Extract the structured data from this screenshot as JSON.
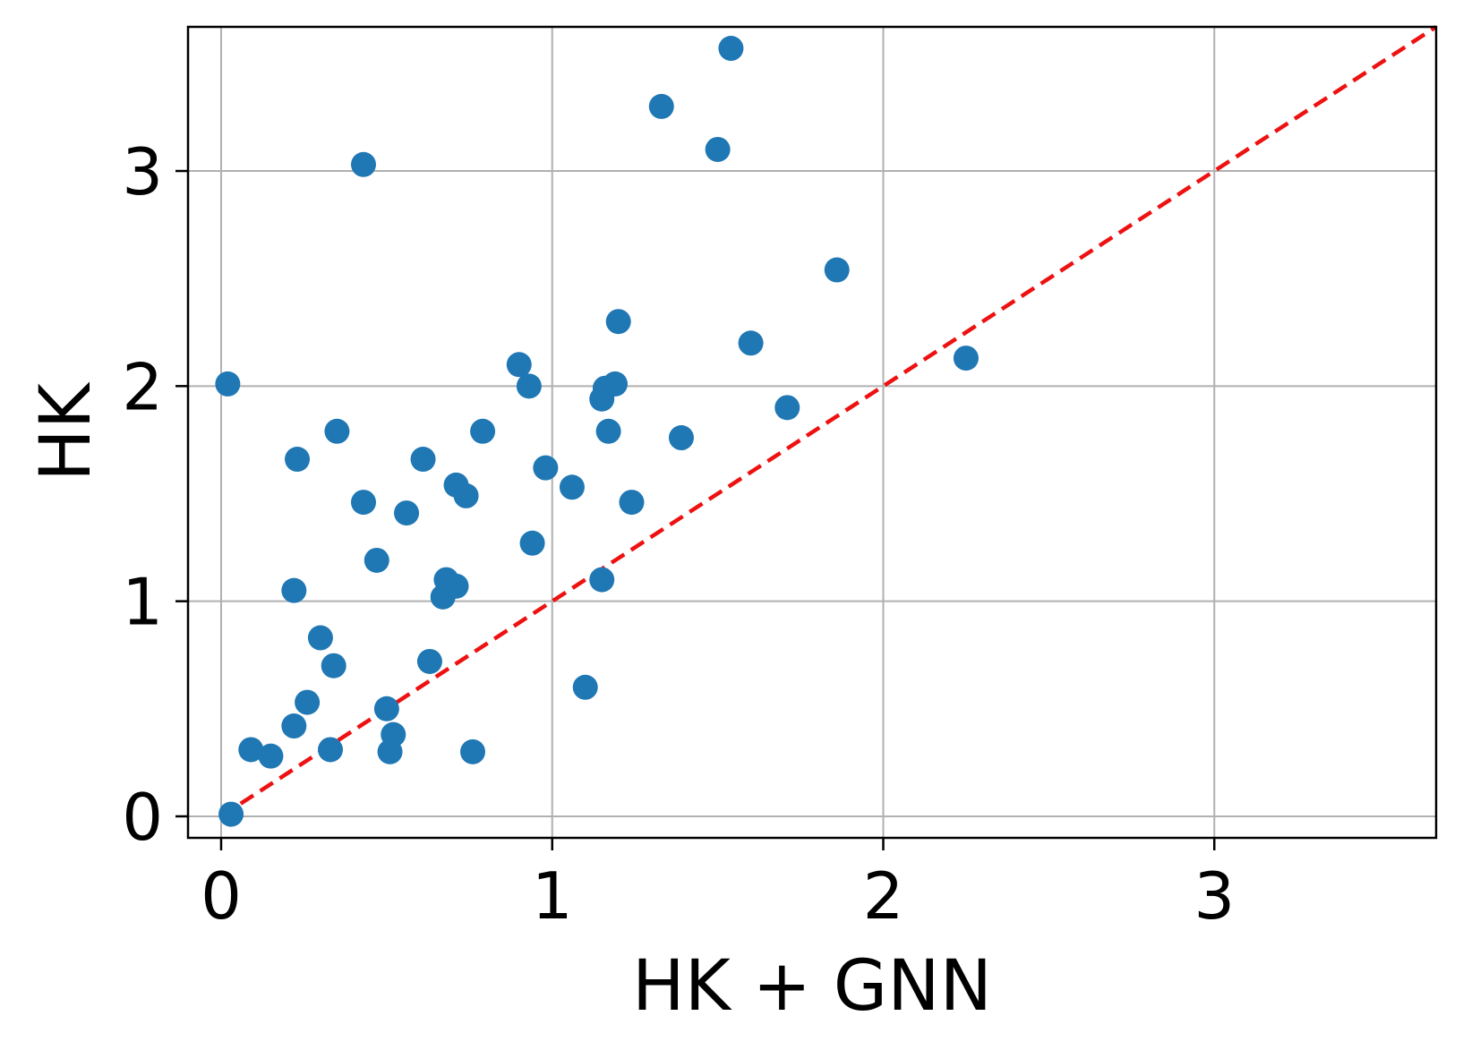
{
  "chart_data": {
    "type": "scatter",
    "xlabel": "HK + GNN",
    "ylabel": "HK",
    "xlim": [
      -0.1,
      3.67
    ],
    "ylim": [
      -0.1,
      3.67
    ],
    "x_ticks": [
      0,
      1,
      2,
      3
    ],
    "x_tick_labels": [
      "0",
      "1",
      "2",
      "3"
    ],
    "y_ticks": [
      0,
      1,
      2,
      3
    ],
    "y_tick_labels": [
      "0",
      "1",
      "2",
      "3"
    ],
    "grid": true,
    "reference_line": {
      "from": [
        0,
        0
      ],
      "to": [
        3.67,
        3.67
      ],
      "style": "dashed",
      "color": "#ee1111"
    },
    "series": [
      {
        "color": "#1f77b4",
        "x": [
          0.03,
          0.02,
          0.09,
          0.15,
          0.23,
          0.22,
          0.22,
          0.26,
          0.3,
          0.33,
          0.34,
          0.35,
          0.43,
          0.43,
          0.47,
          0.5,
          0.51,
          0.52,
          0.56,
          0.61,
          0.63,
          0.67,
          0.68,
          0.71,
          0.71,
          0.74,
          0.76,
          0.79,
          0.9,
          0.93,
          0.94,
          0.98,
          1.06,
          1.1,
          1.15,
          1.15,
          1.16,
          1.17,
          1.19,
          1.2,
          1.24,
          1.33,
          1.39,
          1.5,
          1.54,
          1.6,
          1.71,
          1.86,
          2.25
        ],
        "y": [
          0.01,
          2.01,
          0.31,
          0.28,
          1.66,
          1.05,
          0.42,
          0.53,
          0.83,
          0.31,
          0.7,
          1.79,
          3.03,
          1.46,
          1.19,
          0.5,
          0.3,
          0.38,
          1.41,
          1.66,
          0.72,
          1.02,
          1.1,
          1.54,
          1.07,
          1.49,
          0.3,
          1.79,
          2.1,
          2.0,
          1.27,
          1.62,
          1.53,
          0.6,
          1.1,
          1.94,
          1.99,
          1.79,
          2.01,
          2.3,
          1.46,
          3.3,
          1.76,
          3.1,
          3.57,
          2.2,
          1.9,
          2.54,
          2.13
        ]
      }
    ]
  }
}
